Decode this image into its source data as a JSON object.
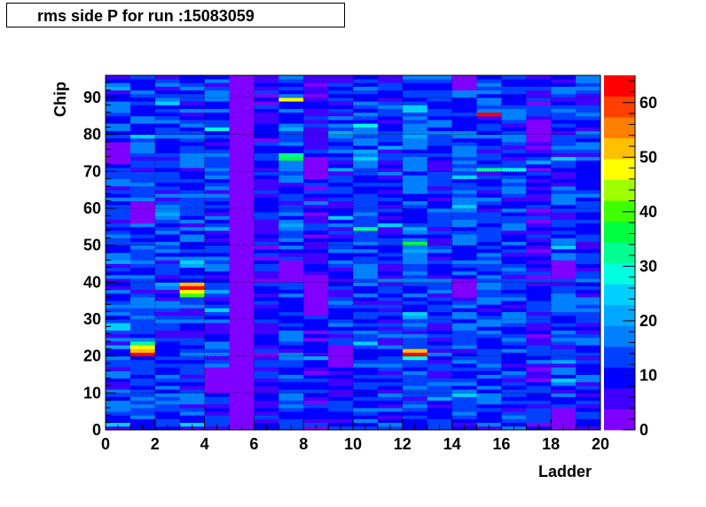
{
  "title": "rms side P for run :15083059",
  "chart_data": {
    "type": "heatmap",
    "title": "rms side P for run :15083059",
    "xlabel": "Ladder",
    "ylabel": "Chip",
    "xlim": [
      0,
      20
    ],
    "ylim": [
      0,
      96
    ],
    "zlim": [
      0,
      65
    ],
    "x_ticks": [
      "0",
      "2",
      "4",
      "6",
      "8",
      "10",
      "12",
      "14",
      "16",
      "18",
      "20"
    ],
    "y_ticks": [
      "0",
      "10",
      "20",
      "30",
      "40",
      "50",
      "60",
      "70",
      "80",
      "90"
    ],
    "z_ticks": [
      "0",
      "10",
      "20",
      "30",
      "40",
      "50",
      "60"
    ],
    "x_bins": 20,
    "y_bins": 96,
    "column_base_values": [
      12,
      13,
      12,
      12,
      12,
      1,
      9,
      13,
      8,
      12,
      13,
      11,
      13,
      11,
      13,
      13,
      12,
      9,
      12,
      11
    ],
    "hot_cells": [
      {
        "ladder": 1,
        "chip": 20,
        "value": 62
      },
      {
        "ladder": 1,
        "chip": 21,
        "value": 50
      },
      {
        "ladder": 1,
        "chip": 22,
        "value": 46
      },
      {
        "ladder": 1,
        "chip": 23,
        "value": 33
      },
      {
        "ladder": 3,
        "chip": 38,
        "value": 62
      },
      {
        "ladder": 3,
        "chip": 39,
        "value": 50
      },
      {
        "ladder": 3,
        "chip": 37,
        "value": 46
      },
      {
        "ladder": 3,
        "chip": 36,
        "value": 40
      },
      {
        "ladder": 12,
        "chip": 20,
        "value": 64
      },
      {
        "ladder": 12,
        "chip": 21,
        "value": 52
      },
      {
        "ladder": 12,
        "chip": 19,
        "value": 30
      },
      {
        "ladder": 15,
        "chip": 85,
        "value": 64
      },
      {
        "ladder": 7,
        "chip": 89,
        "value": 48
      },
      {
        "ladder": 7,
        "chip": 73,
        "value": 36
      },
      {
        "ladder": 7,
        "chip": 74,
        "value": 34
      },
      {
        "ladder": 10,
        "chip": 54,
        "value": 34
      },
      {
        "ladder": 12,
        "chip": 50,
        "value": 38
      },
      {
        "ladder": 0,
        "chip": 28,
        "value": 26
      },
      {
        "ladder": 0,
        "chip": 27,
        "value": 24
      },
      {
        "ladder": 15,
        "chip": 70,
        "value": 32
      },
      {
        "ladder": 16,
        "chip": 70,
        "value": 28
      },
      {
        "ladder": 4,
        "chip": 81,
        "value": 30
      },
      {
        "ladder": 12,
        "chip": 87,
        "value": 26
      },
      {
        "ladder": 10,
        "chip": 82,
        "value": 28
      }
    ],
    "dead_regions": [
      {
        "ladder": 5,
        "chip_from": 0,
        "chip_to": 96
      },
      {
        "ladder": 4,
        "chip_from": 10,
        "chip_to": 17
      },
      {
        "ladder": 7,
        "chip_from": 40,
        "chip_to": 46
      },
      {
        "ladder": 8,
        "chip_from": 31,
        "chip_to": 42
      },
      {
        "ladder": 8,
        "chip_from": 68,
        "chip_to": 74
      },
      {
        "ladder": 18,
        "chip_from": 41,
        "chip_to": 46
      },
      {
        "ladder": 18,
        "chip_from": 0,
        "chip_to": 6
      },
      {
        "ladder": 14,
        "chip_from": 92,
        "chip_to": 96
      },
      {
        "ladder": 14,
        "chip_from": 36,
        "chip_to": 41
      },
      {
        "ladder": 17,
        "chip_from": 78,
        "chip_to": 84
      },
      {
        "ladder": 9,
        "chip_from": 17,
        "chip_to": 23
      },
      {
        "ladder": 1,
        "chip_from": 56,
        "chip_to": 62
      },
      {
        "ladder": 0,
        "chip_from": 72,
        "chip_to": 78
      },
      {
        "ladder": 7,
        "chip_from": 96,
        "chip_to": 96
      }
    ],
    "palette": [
      "#7f00ff",
      "#4000ff",
      "#0000ff",
      "#0040ff",
      "#0080ff",
      "#00a8ff",
      "#00d0ff",
      "#00ffe0",
      "#00ff90",
      "#00ff40",
      "#40ff00",
      "#a0ff00",
      "#ffff00",
      "#ffc000",
      "#ff8000",
      "#ff4000",
      "#ff0000"
    ],
    "grid": true
  }
}
